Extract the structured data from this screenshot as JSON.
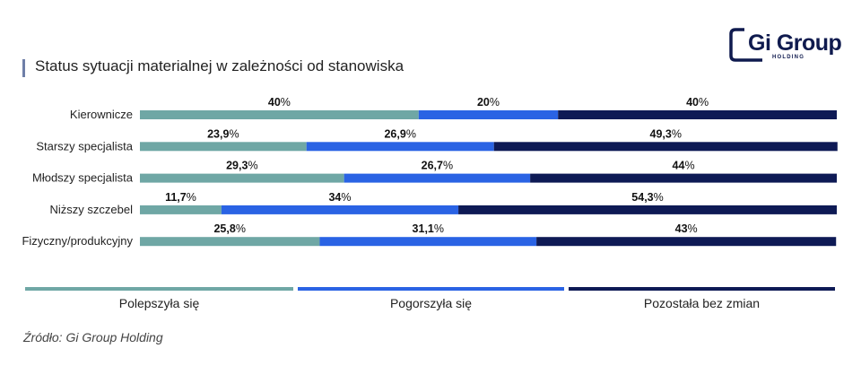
{
  "header": {
    "title": "Status sytuacji materialnej w zależności od stanowiska",
    "logo_text": "Gi Group",
    "logo_sub": "HOLDING"
  },
  "chart_data": {
    "type": "bar",
    "orientation": "horizontal",
    "stacked": true,
    "title": "Status sytuacji materialnej w zależności od stanowiska",
    "categories": [
      "Kierownicze",
      "Starszy specjalista",
      "Młodszy specjalista",
      "Niższy szczebel",
      "Fizyczny/produkcyjny"
    ],
    "series": [
      {
        "name": "Polepszyła się",
        "color": "#6fa7a5",
        "values": [
          40,
          23.9,
          29.3,
          11.7,
          25.8
        ],
        "labels": [
          "40%",
          "23,9%",
          "29,3%",
          "11,7%",
          "25,8%"
        ]
      },
      {
        "name": "Pogorszyła się",
        "color": "#2a63e4",
        "values": [
          20,
          26.9,
          26.7,
          34,
          31.1
        ],
        "labels": [
          "20%",
          "26,9%",
          "26,7%",
          "34%",
          "31,1%"
        ]
      },
      {
        "name": "Pozostała bez zmian",
        "color": "#0e1a55",
        "values": [
          40,
          49.3,
          44,
          54.3,
          43
        ],
        "labels": [
          "40%",
          "49,3%",
          "44%",
          "54,3%",
          "43%"
        ]
      }
    ],
    "xlim": [
      0,
      100
    ],
    "legend_position": "bottom",
    "grid": false
  },
  "legend": {
    "items": [
      {
        "label": "Polepszyła się",
        "color": "#6fa7a5"
      },
      {
        "label": "Pogorszyła się",
        "color": "#2a63e4"
      },
      {
        "label": "Pozostała bez zmian",
        "color": "#0e1a55"
      }
    ]
  },
  "source": "Źródło: Gi Group Holding"
}
